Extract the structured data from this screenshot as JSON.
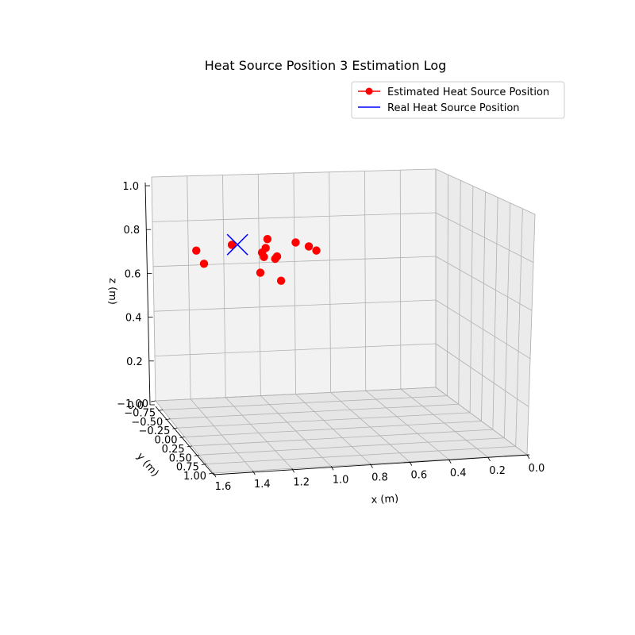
{
  "chart_data": {
    "type": "scatter",
    "projection": "3d",
    "title": "Heat Source Position 3 Estimation Log",
    "xlabel": "x (m)",
    "ylabel": "y (m)",
    "zlabel": "z (m)",
    "xlim": [
      0.0,
      1.6
    ],
    "ylim": [
      -1.0,
      1.0
    ],
    "zlim": [
      0.0,
      1.0
    ],
    "x_ticks": [
      "0.0",
      "0.2",
      "0.4",
      "0.6",
      "0.8",
      "1.0",
      "1.2",
      "1.4",
      "1.6"
    ],
    "y_ticks": [
      "−1.00",
      "−0.75",
      "−0.50",
      "−0.25",
      "0.00",
      "0.25",
      "0.50",
      "0.75",
      "1.00"
    ],
    "z_ticks": [
      "0.0",
      "0.2",
      "0.4",
      "0.6",
      "0.8",
      "1.0"
    ],
    "legend": {
      "location": "top-right",
      "entries": [
        "Estimated Heat Source Position",
        "Real Heat Source Position"
      ]
    },
    "series": [
      {
        "name": "Estimated Heat Source Position",
        "color": "#ff0000",
        "marker": "circle",
        "points": [
          {
            "x": 1.52,
            "y": 0.0,
            "z": 0.83
          },
          {
            "x": 1.48,
            "y": 0.0,
            "z": 0.77
          },
          {
            "x": 1.33,
            "y": 0.0,
            "z": 0.85
          },
          {
            "x": 1.14,
            "y": 0.0,
            "z": 0.87
          },
          {
            "x": 1.15,
            "y": 0.0,
            "z": 0.83
          },
          {
            "x": 1.17,
            "y": 0.0,
            "z": 0.81
          },
          {
            "x": 1.16,
            "y": 0.0,
            "z": 0.79
          },
          {
            "x": 1.09,
            "y": 0.0,
            "z": 0.79
          },
          {
            "x": 1.1,
            "y": 0.0,
            "z": 0.78
          },
          {
            "x": 1.18,
            "y": 0.0,
            "z": 0.72
          },
          {
            "x": 1.07,
            "y": 0.0,
            "z": 0.68
          },
          {
            "x": 0.99,
            "y": 0.0,
            "z": 0.85
          },
          {
            "x": 0.92,
            "y": 0.0,
            "z": 0.83
          },
          {
            "x": 0.88,
            "y": 0.0,
            "z": 0.81
          }
        ]
      },
      {
        "name": "Real Heat Source Position",
        "color": "#0000ff",
        "marker": "x",
        "points": [
          {
            "x": 1.3,
            "y": 0.0,
            "z": 0.85
          }
        ]
      }
    ]
  }
}
